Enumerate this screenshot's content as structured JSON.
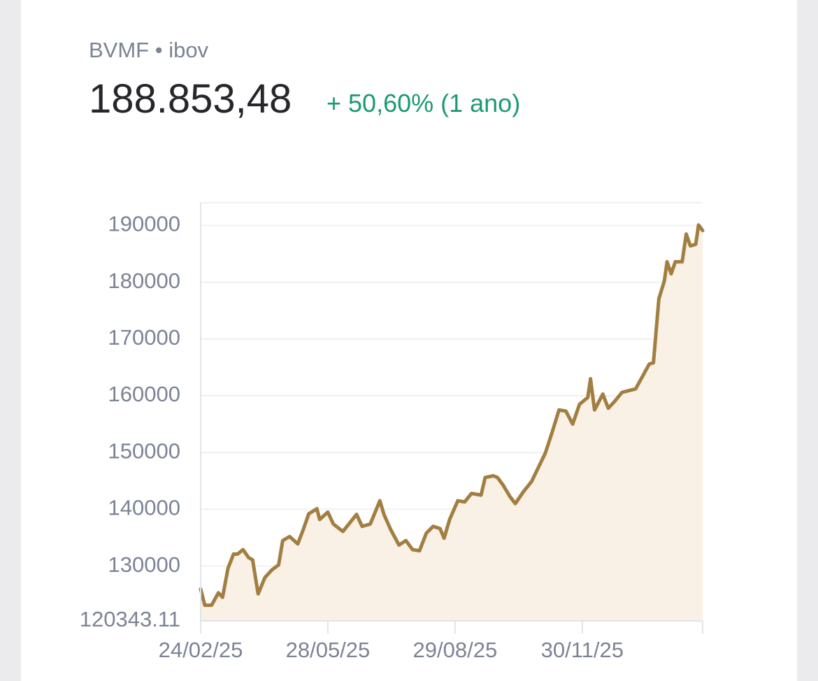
{
  "header": {
    "symbol": "BVMF • ibov",
    "price": "188.853,48",
    "change": "+ 50,60% (1 ano)"
  },
  "chart_data": {
    "type": "area",
    "x": [
      "2025-02-24",
      "2025-02-27",
      "2025-03-04",
      "2025-03-09",
      "2025-03-12",
      "2025-03-16",
      "2025-03-20",
      "2025-03-23",
      "2025-03-27",
      "2025-03-31",
      "2025-04-03",
      "2025-04-07",
      "2025-04-12",
      "2025-04-17",
      "2025-04-22",
      "2025-04-25",
      "2025-04-30",
      "2025-05-06",
      "2025-05-10",
      "2025-05-14",
      "2025-05-20",
      "2025-05-22",
      "2025-05-28",
      "2025-06-01",
      "2025-06-08",
      "2025-06-13",
      "2025-06-18",
      "2025-06-22",
      "2025-06-28",
      "2025-07-05",
      "2025-07-08",
      "2025-07-13",
      "2025-07-19",
      "2025-07-24",
      "2025-07-29",
      "2025-08-03",
      "2025-08-08",
      "2025-08-13",
      "2025-08-18",
      "2025-08-21",
      "2025-08-25",
      "2025-08-31",
      "2025-09-05",
      "2025-09-10",
      "2025-09-17",
      "2025-09-20",
      "2025-09-26",
      "2025-09-29",
      "2025-10-03",
      "2025-10-08",
      "2025-10-12",
      "2025-10-18",
      "2025-10-24",
      "2025-10-29",
      "2025-11-03",
      "2025-11-08",
      "2025-11-13",
      "2025-11-18",
      "2025-11-23",
      "2025-11-28",
      "2025-12-04",
      "2025-12-06",
      "2025-12-09",
      "2025-12-15",
      "2025-12-19",
      "2025-12-24",
      "2025-12-29",
      "2026-01-03",
      "2026-01-08",
      "2026-01-13",
      "2026-01-18",
      "2026-01-21",
      "2026-01-25",
      "2026-01-29",
      "2026-01-31",
      "2026-02-03",
      "2026-02-06",
      "2026-02-11",
      "2026-02-14",
      "2026-02-17",
      "2026-02-21",
      "2026-02-23",
      "2026-02-26"
    ],
    "series": [
      {
        "color": "#a27e40",
        "fill": "#f9f0e6",
        "values": [
          125950,
          123100,
          123100,
          125300,
          124500,
          129600,
          132100,
          132100,
          132900,
          131500,
          131100,
          125100,
          128000,
          129300,
          130200,
          134500,
          135200,
          133900,
          136400,
          139200,
          140100,
          138200,
          139500,
          137400,
          136100,
          137600,
          139100,
          137000,
          137400,
          141500,
          139100,
          136400,
          133700,
          134500,
          132900,
          132700,
          135800,
          137000,
          136600,
          134900,
          138200,
          141500,
          141300,
          142800,
          142500,
          145600,
          145900,
          145600,
          144300,
          142300,
          141000,
          143100,
          144900,
          147400,
          149900,
          153600,
          157500,
          157300,
          155000,
          158500,
          159700,
          163000,
          157500,
          160300,
          157800,
          159100,
          160600,
          160900,
          161200,
          163400,
          165600,
          165800,
          177100,
          180200,
          183600,
          181500,
          183600,
          183600,
          188500,
          186400,
          186700,
          190100,
          189100
        ]
      }
    ],
    "xlim": [
      "2025-02-24",
      "2026-02-26"
    ],
    "xticks": [
      {
        "value": "2025-02-24",
        "label": "24/02/25"
      },
      {
        "value": "2025-05-28",
        "label": "28/05/25"
      },
      {
        "value": "2025-08-29",
        "label": "29/08/25"
      },
      {
        "value": "2025-11-30",
        "label": "30/11/25"
      }
    ],
    "ylim": [
      120343.11,
      194000
    ],
    "yticks": [
      120343.11,
      130000,
      140000,
      150000,
      160000,
      170000,
      180000,
      190000
    ],
    "grid": true
  }
}
